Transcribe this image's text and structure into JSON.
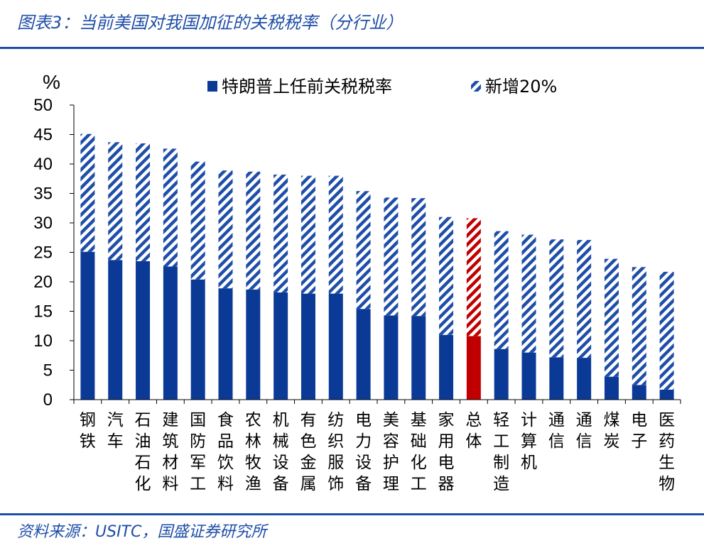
{
  "header": {
    "title": "图表3：当前美国对我国加征的关税税率（分行业）"
  },
  "footer": {
    "source": "资料来源：USITC，国盛证券研究所"
  },
  "colors": {
    "base": "#0b3a96",
    "highlight": "#c00000",
    "hatch": "#1f4ea8",
    "rule": "#1f4ea8"
  },
  "chart_data": {
    "type": "bar",
    "stacked": true,
    "ylabel": "%",
    "ylim": [
      0,
      50
    ],
    "yticks": [
      0,
      5,
      10,
      15,
      20,
      25,
      30,
      35,
      40,
      45,
      50
    ],
    "grid": false,
    "legend_position": "top",
    "categories": [
      "钢铁",
      "汽车",
      "石油石化",
      "建筑材料",
      "国防军工",
      "食品饮料",
      "农林牧渔",
      "机械设备",
      "有色金属",
      "纺织服饰",
      "电力设备",
      "美容护理",
      "基础化工",
      "家用电器",
      "总体",
      "轻工制造",
      "计算机",
      "通信",
      "通信",
      "煤炭",
      "电子",
      "医药生物"
    ],
    "highlight_category": "总体",
    "series": [
      {
        "name": "特朗普上任前关税税率",
        "style": "solid",
        "values": [
          25.1,
          23.7,
          23.5,
          22.6,
          20.4,
          18.9,
          18.7,
          18.2,
          18.0,
          18.0,
          15.4,
          14.3,
          14.2,
          11.0,
          10.8,
          8.6,
          8.0,
          7.2,
          7.1,
          3.9,
          2.5,
          1.7
        ]
      },
      {
        "name": "新增20%",
        "style": "hatched",
        "values": [
          20,
          20,
          20,
          20,
          20,
          20,
          20,
          20,
          20,
          20,
          20,
          20,
          20,
          20,
          20,
          20,
          20,
          20,
          20,
          20,
          20,
          20
        ]
      }
    ]
  }
}
